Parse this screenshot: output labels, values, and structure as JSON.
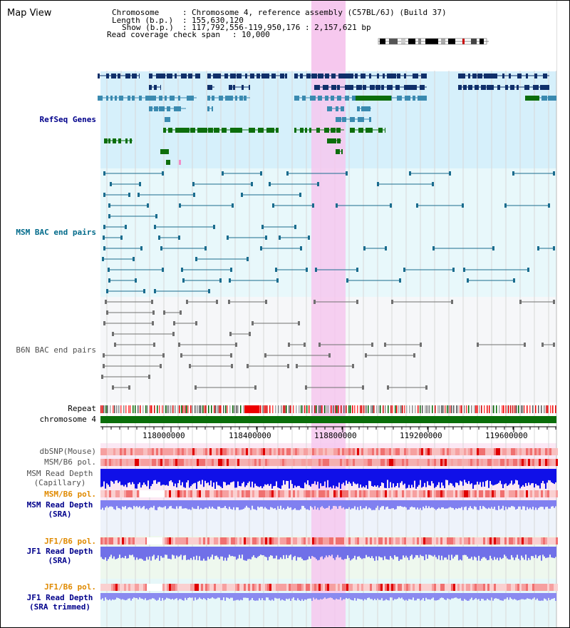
{
  "view_title": "Map View",
  "info": {
    "chromosome_label": "Chromosome",
    "chromosome_value": "Chromosome 4, reference assembly (C57BL/6J) (Build 37)",
    "length_label": "Length (b.p.)",
    "length_value": "155,630,120",
    "show_label": "Show (b.p.)",
    "show_value": "117,792,556-119,950,176 : 2,157,621 bp",
    "span_label": "Read coverage check span",
    "span_value": "10,000"
  },
  "tracks": {
    "refseq": "RefSeq Genes",
    "msm_bac": "MSM BAC end pairs",
    "b6n_bac": "B6N BAC end pairs",
    "repeat": "Repeat",
    "chromosome": "chromosome 4",
    "dbsnp": "dbSNP(Mouse)",
    "msm_b6_pol": "MSM/B6 pol.",
    "msm_depth_cap_1": "MSM Read Depth",
    "msm_depth_cap_2": "(Capillary)",
    "msm_b6_pol_2": "MSM/B6 pol.",
    "msm_depth_sra_1": "MSM Read Depth",
    "msm_depth_sra_2": "(SRA)",
    "jf1_b6_pol": "JF1/B6 pol.",
    "jf1_depth_sra_1": "JF1 Read Depth",
    "jf1_depth_sra_2": "(SRA)",
    "jf1_b6_pol_2": "JF1/B6 pol.",
    "jf1_depth_trim_1": "JF1 Read Depth",
    "jf1_depth_trim_2": "(SRA trimmed)"
  },
  "axis": {
    "ticks": [
      "118000000",
      "118400000",
      "118800000",
      "119200000",
      "119600000"
    ]
  },
  "colors": {
    "label_blue": "#00008b",
    "label_teal": "#006a8a",
    "label_gray": "#505050",
    "label_orange": "#e08a00",
    "highlight": "#f6c8ee",
    "refseq_bg": "#d6f0fb",
    "msm_bg": "#e8f8fb",
    "b6n_bg": "#f6f7f9",
    "gene_dark": "#0f2f6a",
    "gene_mid": "#3a8ab0",
    "gene_green": "#0c6e0c",
    "chromosome_bar": "#0a6e0a"
  }
}
